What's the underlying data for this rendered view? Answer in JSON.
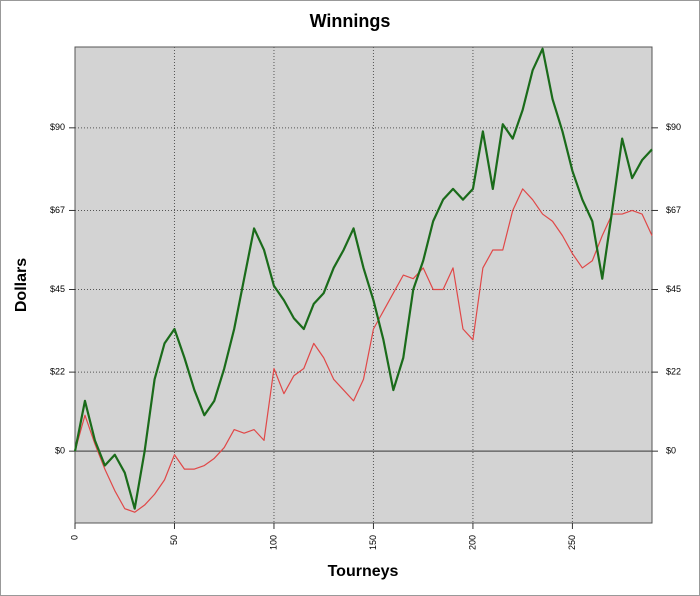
{
  "chart_data": {
    "type": "line",
    "title": "Winnings",
    "x_label": "Tourneys",
    "y_label": "Dollars",
    "x": [
      0,
      5,
      10,
      15,
      20,
      25,
      30,
      35,
      40,
      45,
      50,
      55,
      60,
      65,
      70,
      75,
      80,
      85,
      90,
      95,
      100,
      105,
      110,
      115,
      120,
      125,
      130,
      135,
      140,
      145,
      150,
      155,
      160,
      165,
      170,
      175,
      180,
      185,
      190,
      195,
      200,
      205,
      210,
      215,
      220,
      225,
      230,
      235,
      240,
      245,
      250,
      255,
      260,
      265,
      270,
      275,
      280,
      285,
      290
    ],
    "series": [
      {
        "name": "Green",
        "color": "#1a6b1a",
        "values": [
          0,
          14,
          3,
          -4,
          -1,
          -6,
          -16,
          0,
          20,
          30,
          34,
          26,
          17,
          10,
          14,
          23,
          34,
          48,
          62,
          56,
          46,
          42,
          37,
          34,
          41,
          44,
          51,
          56,
          62,
          51,
          42,
          31,
          17,
          26,
          45,
          53,
          64,
          70,
          73,
          70,
          73,
          89,
          73,
          91,
          87,
          95,
          106,
          112,
          98,
          89,
          78,
          70,
          64,
          48,
          67,
          87,
          76,
          81,
          84
        ]
      },
      {
        "name": "Red",
        "color": "#e04848",
        "values": [
          0,
          10,
          2,
          -5,
          -11,
          -16,
          -17,
          -15,
          -12,
          -8,
          -1,
          -5,
          -5,
          -4,
          -2,
          1,
          6,
          5,
          6,
          3,
          23,
          16,
          21,
          23,
          30,
          26,
          20,
          17,
          14,
          20,
          34,
          39,
          44,
          49,
          48,
          51,
          45,
          45,
          51,
          34,
          31,
          51,
          56,
          56,
          67,
          73,
          70,
          66,
          64,
          60,
          55,
          51,
          53,
          60,
          66,
          66,
          67,
          66,
          60
        ]
      }
    ],
    "xlim": [
      0,
      290
    ],
    "ylim": [
      -20,
      112.5
    ],
    "xticks": [
      0,
      50,
      100,
      150,
      200,
      250
    ],
    "yticks": [
      {
        "value": 0,
        "label": "$0"
      },
      {
        "value": 22,
        "label": "$22"
      },
      {
        "value": 45,
        "label": "$45"
      },
      {
        "value": 67,
        "label": "$67"
      },
      {
        "value": 90,
        "label": "$90"
      }
    ],
    "grid": true
  }
}
